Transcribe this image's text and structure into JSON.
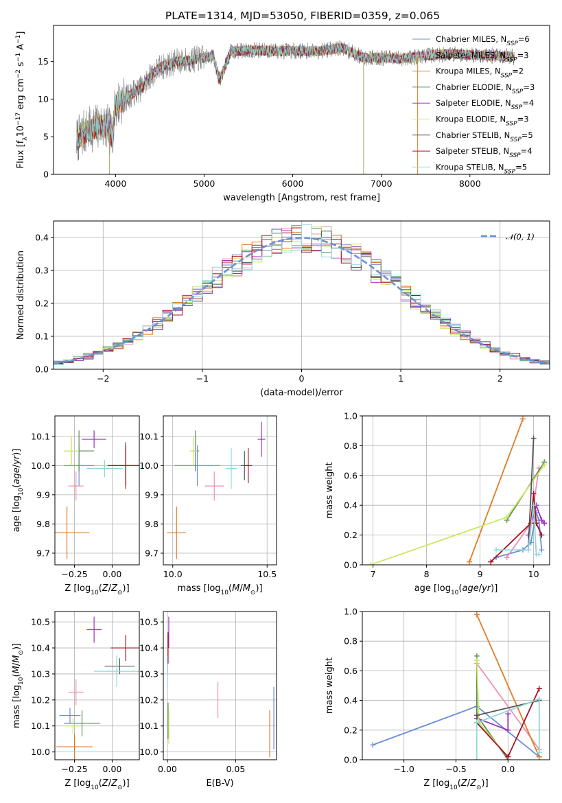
{
  "figure": {
    "title": "PLATE=1314, MJD=53050, FIBERID=0359, z=0.065",
    "colors": [
      "#6a8fd8",
      "#ee8fb2",
      "#e07b25",
      "#5e8d5e",
      "#9b30c0",
      "#c9e85e",
      "#555555",
      "#aa1020",
      "#8fd8d8"
    ]
  },
  "chart_data": [
    {
      "id": "spectrum",
      "type": "line",
      "xlabel": "wavelength [Angstrom, rest frame]",
      "ylabel": "Flux [f_λ10^−17 erg cm^−2 s^−1 A^−1]",
      "xlim": [
        3300,
        8900
      ],
      "ylim": [
        0,
        19.8
      ],
      "xticks": [
        4000,
        5000,
        6000,
        7000,
        8000
      ],
      "yticks": [
        0,
        5,
        10,
        15
      ],
      "grid": false,
      "legend_position": "right",
      "legend": [
        "Chabrier MILES, N_SSP=6",
        "Salpeter MILES, N_SSP=3",
        "Kroupa MILES, N_SSP=2",
        "Chabrier ELODIE, N_SSP=3",
        "Salpeter ELODIE, N_SSP=4",
        "Kroupa ELODIE, N_SSP=3",
        "Chabrier STELIB, N_SSP=5",
        "Salpeter STELIB, N_SSP=4",
        "Kroupa STELIB, N_SSP=5"
      ],
      "continuum": {
        "wavelength": [
          3560,
          3650,
          3800,
          3900,
          3960,
          4000,
          4100,
          4200,
          4300,
          4400,
          4500,
          4700,
          4860,
          5000,
          5100,
          5175,
          5300,
          5500,
          5800,
          6000,
          6300,
          6563,
          6800,
          7000,
          7200,
          7400,
          7600,
          7800,
          8000,
          8200,
          8400,
          8500
        ],
        "flux": [
          4.5,
          5.6,
          6.4,
          6.5,
          5.0,
          9.2,
          10.0,
          10.8,
          11.5,
          13.2,
          14.2,
          15.0,
          15.2,
          15.5,
          15.8,
          12.5,
          16.3,
          16.5,
          16.4,
          16.4,
          16.4,
          16.8,
          15.5,
          15.5,
          15.4,
          15.6,
          15.9,
          16.0,
          15.9,
          15.8,
          15.7,
          15.6
        ]
      },
      "spikes": [
        {
          "wavelength": 3930,
          "flux": 0
        },
        {
          "wavelength": 6800,
          "flux": 0
        },
        {
          "wavelength": 7410,
          "flux": 0
        }
      ]
    },
    {
      "id": "residuals",
      "type": "line",
      "xlabel": "(data-model)/error",
      "ylabel": "Normed distribution",
      "xlim": [
        -2.5,
        2.5
      ],
      "ylim": [
        0,
        0.45
      ],
      "xticks": [
        -2,
        -1,
        0,
        1,
        2
      ],
      "yticks": [
        0.0,
        0.1,
        0.2,
        0.3,
        0.4
      ],
      "grid": true,
      "legend_position": "top-right",
      "legend": [
        "𝒩(0, 1)"
      ],
      "gaussian": {
        "mean": 0,
        "sigma": 1
      },
      "histogram": {
        "bin_width": 0.1,
        "range": [
          -2.5,
          2.5
        ]
      }
    },
    {
      "id": "age_vs_z",
      "type": "scatter",
      "xlabel": "Z [log10(Z/Z⊙)]",
      "ylabel": "age [log10(age/yr)]",
      "xlim": [
        -0.38,
        0.18
      ],
      "ylim": [
        9.66,
        10.17
      ],
      "xticks": [
        -0.25,
        0.0
      ],
      "xtick_labels": [
        "−0.25",
        "0.00"
      ],
      "yticks": [
        9.7,
        9.8,
        9.9,
        10.0,
        10.1
      ],
      "grid": true,
      "points": [
        {
          "x": -0.22,
          "y": 10.0,
          "xerr": 0.1,
          "yerr": 0.07
        },
        {
          "x": -0.24,
          "y": 9.93,
          "xerr": 0.05,
          "yerr": 0.05
        },
        {
          "x": -0.3,
          "y": 9.77,
          "xerr": 0.15,
          "yerr": 0.09
        },
        {
          "x": -0.22,
          "y": 10.05,
          "xerr": 0.1,
          "yerr": 0.07
        },
        {
          "x": -0.12,
          "y": 10.09,
          "xerr": 0.08,
          "yerr": 0.03
        },
        {
          "x": -0.27,
          "y": 10.05,
          "xerr": 0.05,
          "yerr": 0.05
        },
        {
          "x": 0.09,
          "y": 10.0,
          "xerr": 0.12,
          "yerr": 0.08
        },
        {
          "x": 0.09,
          "y": 10.0,
          "xerr": 0.12,
          "yerr": 0.07
        },
        {
          "x": -0.05,
          "y": 9.99,
          "xerr": 0.12,
          "yerr": 0.03
        }
      ]
    },
    {
      "id": "age_vs_mass",
      "type": "scatter",
      "xlabel": "mass [log10(M/M⊙)]",
      "ylabel": "",
      "xlim": [
        9.95,
        10.55
      ],
      "ylim": [
        9.66,
        10.17
      ],
      "xticks": [
        10.0,
        10.5
      ],
      "xtick_labels": [
        "10.0",
        "10.5"
      ],
      "yticks": [
        9.7,
        9.8,
        9.9,
        10.0,
        10.1
      ],
      "grid": true,
      "points": [
        {
          "x": 10.13,
          "y": 10.0,
          "xerr": 0.12,
          "yerr": 0.07
        },
        {
          "x": 10.22,
          "y": 9.93,
          "xerr": 0.05,
          "yerr": 0.05
        },
        {
          "x": 10.02,
          "y": 9.77,
          "xerr": 0.05,
          "yerr": 0.09
        },
        {
          "x": 10.12,
          "y": 10.05,
          "xerr": 0.02,
          "yerr": 0.07
        },
        {
          "x": 10.47,
          "y": 10.09,
          "xerr": 0.02,
          "yerr": 0.06
        },
        {
          "x": 10.11,
          "y": 10.05,
          "xerr": 0.02,
          "yerr": 0.05
        },
        {
          "x": 10.38,
          "y": 10.0,
          "xerr": 0.02,
          "yerr": 0.05
        },
        {
          "x": 10.4,
          "y": 10.0,
          "xerr": 0.02,
          "yerr": 0.06
        },
        {
          "x": 10.31,
          "y": 9.99,
          "xerr": 0.03,
          "yerr": 0.07
        }
      ]
    },
    {
      "id": "weight_vs_age",
      "type": "line",
      "xlabel": "age [log10(age/yr)]",
      "ylabel": "mass weight",
      "xlim": [
        6.8,
        10.3
      ],
      "ylim": [
        0,
        1.0
      ],
      "xticks": [
        7,
        8,
        9,
        10
      ],
      "yticks": [
        0.0,
        0.2,
        0.4,
        0.6,
        0.8,
        1.0
      ],
      "grid": true,
      "series": [
        {
          "x": [
            9.3,
            9.8,
            9.95,
            10.05,
            10.1,
            10.15
          ],
          "y": [
            0.05,
            0.1,
            0.15,
            0.35,
            0.3,
            0.1
          ]
        },
        {
          "x": [
            9.5,
            9.95,
            10.1
          ],
          "y": [
            0.05,
            0.28,
            0.65
          ]
        },
        {
          "x": [
            8.8,
            9.8
          ],
          "y": [
            0.02,
            0.98
          ]
        },
        {
          "x": [
            9.5,
            10.2
          ],
          "y": [
            0.3,
            0.69
          ]
        },
        {
          "x": [
            9.9,
            10.05,
            10.15,
            10.2
          ],
          "y": [
            0.2,
            0.4,
            0.3,
            0.28
          ]
        },
        {
          "x": [
            6.95,
            9.5,
            10.2
          ],
          "y": [
            0.0,
            0.32,
            0.67
          ]
        },
        {
          "x": [
            9.9,
            10.0
          ],
          "y": [
            0.1,
            0.85
          ]
        },
        {
          "x": [
            9.2,
            9.95,
            10.0,
            10.05,
            10.15
          ],
          "y": [
            0.02,
            0.28,
            0.48,
            0.28,
            0.2
          ]
        },
        {
          "x": [
            9.3,
            9.9,
            10.0,
            10.05,
            10.1
          ],
          "y": [
            0.1,
            0.1,
            0.4,
            0.07,
            0.07
          ]
        }
      ]
    },
    {
      "id": "mass_vs_z",
      "type": "scatter",
      "xlabel": "Z [log10(Z/Z⊙)]",
      "ylabel": "mass [log10(M/M⊙)]",
      "xlim": [
        -0.38,
        0.18
      ],
      "ylim": [
        9.97,
        10.54
      ],
      "xticks": [
        -0.25,
        0.0
      ],
      "xtick_labels": [
        "−0.25",
        "0.00"
      ],
      "yticks": [
        10.0,
        10.1,
        10.2,
        10.3,
        10.4,
        10.5
      ],
      "grid": true,
      "points": [
        {
          "x": -0.28,
          "y": 10.14,
          "xerr": 0.07,
          "yerr": 0.03
        },
        {
          "x": -0.24,
          "y": 10.23,
          "xerr": 0.05,
          "yerr": 0.05
        },
        {
          "x": -0.25,
          "y": 10.02,
          "xerr": 0.12,
          "yerr": 0.05
        },
        {
          "x": -0.2,
          "y": 10.11,
          "xerr": 0.12,
          "yerr": 0.05
        },
        {
          "x": -0.12,
          "y": 10.47,
          "xerr": 0.05,
          "yerr": 0.05
        },
        {
          "x": -0.26,
          "y": 10.1,
          "xerr": 0.05,
          "yerr": 0.03
        },
        {
          "x": 0.05,
          "y": 10.33,
          "xerr": 0.1,
          "yerr": 0.03
        },
        {
          "x": 0.09,
          "y": 10.4,
          "xerr": 0.1,
          "yerr": 0.05
        },
        {
          "x": 0.03,
          "y": 10.31,
          "xerr": 0.15,
          "yerr": 0.06
        }
      ]
    },
    {
      "id": "mass_vs_ebv",
      "type": "scatter",
      "xlabel": "E(B-V)",
      "ylabel": "",
      "xlim": [
        -0.003,
        0.08
      ],
      "ylim": [
        9.97,
        10.54
      ],
      "xticks": [
        0.0,
        0.05
      ],
      "xtick_labels": [
        "0.00",
        "0.05"
      ],
      "yticks": [
        10.0,
        10.1,
        10.2,
        10.3,
        10.4,
        10.5
      ],
      "grid": true,
      "points": [
        {
          "x": 0.078,
          "y": 10.13,
          "xerr": 0,
          "yerr": 0.12
        },
        {
          "x": 0.037,
          "y": 10.2,
          "xerr": 0,
          "yerr": 0.07
        },
        {
          "x": 0.075,
          "y": 10.07,
          "xerr": 0,
          "yerr": 0.09
        },
        {
          "x": 0.0005,
          "y": 10.12,
          "xerr": 0,
          "yerr": 0.07
        },
        {
          "x": 0.001,
          "y": 10.46,
          "xerr": 0,
          "yerr": 0.06
        },
        {
          "x": 0.001,
          "y": 10.1,
          "xerr": 0,
          "yerr": 0.07
        },
        {
          "x": 0.0,
          "y": 10.33,
          "xerr": 0,
          "yerr": 0.03
        },
        {
          "x": 0.0005,
          "y": 10.4,
          "xerr": 0,
          "yerr": 0.06
        },
        {
          "x": 0.0,
          "y": 10.31,
          "xerr": 0,
          "yerr": 0.06
        }
      ]
    },
    {
      "id": "weight_vs_z",
      "type": "line",
      "xlabel": "Z [log10(Z/Z⊙)]",
      "ylabel": "mass weight",
      "xlim": [
        -1.4,
        0.4
      ],
      "ylim": [
        0,
        1.0
      ],
      "xticks": [
        -1.0,
        -0.5,
        0.0
      ],
      "xtick_labels": [
        "−1.0",
        "−0.5",
        "0.0"
      ],
      "yticks": [
        0.0,
        0.2,
        0.4,
        0.6,
        0.8,
        1.0
      ],
      "grid": true,
      "series": [
        {
          "x": [
            -1.3,
            -0.3,
            0.3
          ],
          "y": [
            0.1,
            0.36,
            0.02
          ]
        },
        {
          "x": [
            -0.3,
            0.3
          ],
          "y": [
            0.65,
            0.07
          ]
        },
        {
          "x": [
            -0.3,
            0.3
          ],
          "y": [
            0.98,
            0.02
          ]
        },
        {
          "x": [
            -0.3,
            -0.3,
            0.0
          ],
          "y": [
            0.7,
            0.3,
            0.0
          ]
        },
        {
          "x": [
            -0.3,
            0.0,
            0.0
          ],
          "y": [
            0.28,
            0.2,
            0.31
          ]
        },
        {
          "x": [
            -0.3,
            -0.28,
            0.0
          ],
          "y": [
            0.67,
            0.25,
            0.02
          ]
        },
        {
          "x": [
            -0.3,
            0.3
          ],
          "y": [
            0.3,
            0.4
          ]
        },
        {
          "x": [
            -0.3,
            0.0,
            0.3
          ],
          "y": [
            0.25,
            0.02,
            0.48
          ]
        },
        {
          "x": [
            -0.3,
            -0.3,
            0.3,
            0.3
          ],
          "y": [
            0.0,
            0.25,
            0.41,
            0.05
          ]
        }
      ]
    }
  ]
}
